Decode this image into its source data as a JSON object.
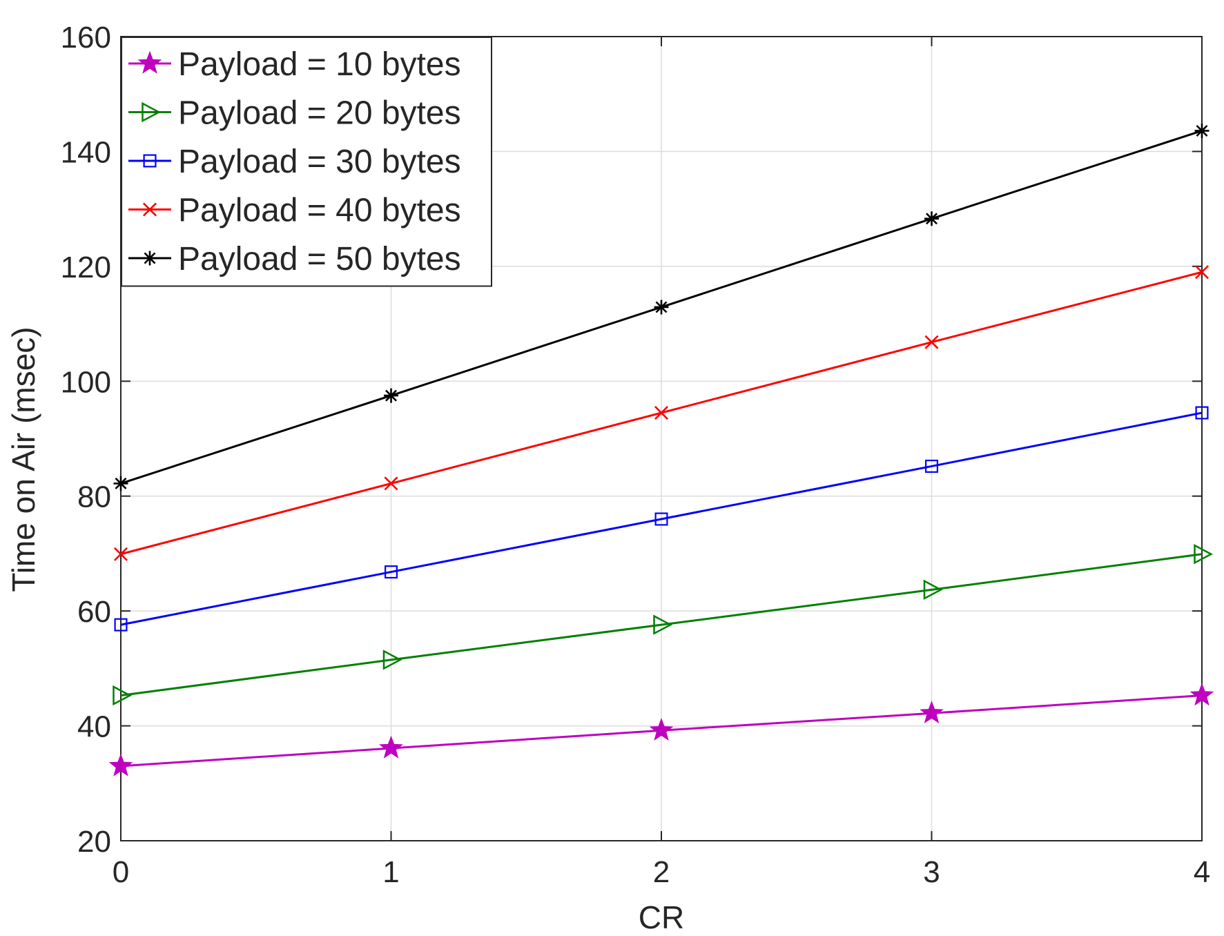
{
  "chart_data": {
    "type": "line",
    "title": "",
    "xlabel": "CR",
    "ylabel": "Time on Air (msec)",
    "xlim": [
      0,
      4
    ],
    "ylim": [
      20,
      160
    ],
    "xticks": [
      0,
      1,
      2,
      3,
      4
    ],
    "yticks": [
      20,
      40,
      60,
      80,
      100,
      120,
      140,
      160
    ],
    "grid": true,
    "legend_position": "top-left",
    "x": [
      0,
      1,
      2,
      3,
      4
    ],
    "series": [
      {
        "name": "Payload = 10 bytes",
        "color": "#bf00bf",
        "marker": "pentagram",
        "values": [
          33.0,
          36.1,
          39.2,
          42.2,
          45.3
        ]
      },
      {
        "name": "Payload = 20 bytes",
        "color": "#008000",
        "marker": "triangle-right",
        "values": [
          45.3,
          51.5,
          57.6,
          63.7,
          69.9
        ]
      },
      {
        "name": "Payload = 30 bytes",
        "color": "#0000ff",
        "marker": "square",
        "values": [
          57.6,
          66.8,
          76.0,
          85.2,
          94.5
        ]
      },
      {
        "name": "Payload = 40 bytes",
        "color": "#ff0000",
        "marker": "x",
        "values": [
          69.9,
          82.2,
          94.5,
          106.8,
          119.0
        ]
      },
      {
        "name": "Payload = 50 bytes",
        "color": "#000000",
        "marker": "asterisk",
        "values": [
          82.2,
          97.5,
          112.9,
          128.3,
          143.6
        ]
      }
    ]
  }
}
